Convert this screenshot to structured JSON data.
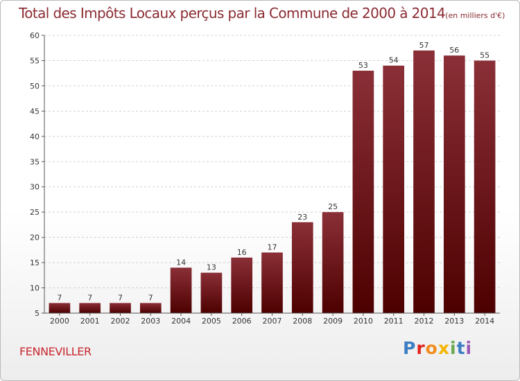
{
  "title": {
    "main": "Total des Impôts Locaux perçus par la Commune de 2000 à 2014",
    "unit": "(en milliers d'€)"
  },
  "footer": {
    "commune": "FENNEVILLER",
    "logo_letters": [
      "P",
      "r",
      "o",
      "x",
      "i",
      "t",
      "i"
    ],
    "logo_colors": [
      "#3d7fc4",
      "#e2231a",
      "#f28c1e",
      "#f5b400",
      "#6aa84f",
      "#3d7fc4",
      "#9b59b6"
    ]
  },
  "chart_data": {
    "type": "bar",
    "title": "Total des Impôts Locaux perçus par la Commune de 2000 à 2014 (en milliers d'€)",
    "categories": [
      "2000",
      "2001",
      "2002",
      "2003",
      "2004",
      "2005",
      "2006",
      "2007",
      "2008",
      "2009",
      "2010",
      "2011",
      "2012",
      "2013",
      "2014"
    ],
    "values": [
      7,
      7,
      7,
      7,
      14,
      13,
      16,
      17,
      23,
      25,
      53,
      54,
      57,
      56,
      55
    ],
    "labels": [
      "7",
      "7",
      "7",
      "7",
      "14",
      "13",
      "16",
      "17",
      "23",
      "25",
      "53",
      "54",
      "57",
      "56",
      "55"
    ],
    "xlabel": "",
    "ylabel": "",
    "ylim": [
      5,
      60
    ],
    "yticks": [
      5,
      10,
      15,
      20,
      25,
      30,
      35,
      40,
      45,
      50,
      55,
      60
    ],
    "ytick_labels": [
      "5",
      "10",
      "15",
      "20",
      "25",
      "30",
      "35",
      "40",
      "45",
      "50",
      "55",
      "60"
    ],
    "grid": true,
    "bar_color": "#7a1a22"
  }
}
